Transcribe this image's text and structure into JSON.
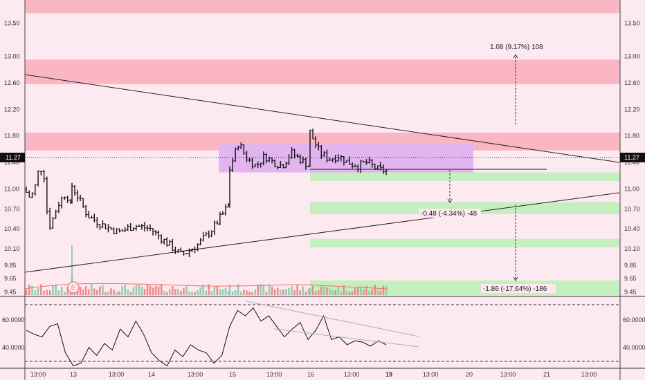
{
  "colors": {
    "background": "#fde9f0",
    "resistance_zone": "#fbb6c3",
    "support_zone": "#c6efbf",
    "range_box": "#e2b4f0",
    "candle": "#111111",
    "volume_up": "#8fcfb0",
    "volume_down": "#f08a8a",
    "oscillator_line": "#111111",
    "channel_line": "#9bb0d8",
    "price_badge": "#111111"
  },
  "price_axis": {
    "min": 9.38,
    "max": 13.85,
    "labels": [
      "13.50",
      "13.00",
      "12.60",
      "12.20",
      "11.80",
      "11.40",
      "11.00",
      "10.70",
      "10.40",
      "10.10",
      "9.85",
      "9.65",
      "9.45"
    ],
    "current_price": "11.27"
  },
  "oscillator_axis": {
    "labels": [
      "60.0000",
      "40.0000"
    ]
  },
  "time_axis": {
    "labels": [
      "13:00",
      "13",
      "13:00",
      "14",
      "13:00",
      "15",
      "13:00",
      "16",
      "13:00",
      "19",
      "13:00",
      "20",
      "13:00",
      "21",
      "13:00"
    ],
    "bold_index": 9
  },
  "measurements": {
    "up": "1.08 (9.17%) 108",
    "mid": "-0.48 (-4.34%) -48",
    "down": "-1.86 (-17.64%) -186"
  },
  "earnings_marker": "E",
  "chart_data": {
    "type": "candlestick",
    "title": "",
    "xlabel": "",
    "ylabel": "",
    "ylim": [
      9.38,
      13.85
    ],
    "current_price": 11.27,
    "zones": {
      "resistance": [
        [
          13.65,
          13.85
        ],
        [
          12.58,
          12.95
        ],
        [
          11.58,
          11.85
        ]
      ],
      "support": [
        [
          11.12,
          11.25
        ],
        [
          10.62,
          10.8
        ],
        [
          10.12,
          10.25
        ],
        [
          9.4,
          9.62
        ]
      ],
      "range_box": [
        11.25,
        11.68
      ]
    },
    "trend_lines": [
      {
        "from": [
          0,
          12.55
        ],
        "to": 1,
        "end_price": 11.18
      },
      {
        "from": [
          0,
          9.7
        ],
        "to": 1,
        "end_price": 10.77
      }
    ],
    "target_levels": [
      12.93,
      10.61,
      9.51
    ],
    "session_closes": {
      "day_13": [
        10.95,
        10.85,
        11.05,
        11.35,
        11.2,
        10.4,
        10.55,
        10.75,
        10.85,
        10.95,
        10.75
      ],
      "day_14": [
        11.05,
        10.6,
        10.45,
        10.35,
        10.45,
        10.4,
        10.2,
        10.0,
        10.15,
        10.4,
        10.75
      ],
      "day_15": [
        11.3,
        11.7,
        11.45,
        11.35,
        11.5,
        11.4,
        11.35,
        11.55,
        11.45,
        11.35
      ],
      "day_16": [
        11.85,
        11.55,
        11.45,
        11.5,
        11.4,
        11.35,
        11.4,
        11.3,
        11.27
      ]
    },
    "oscillator_values": [
      55,
      52,
      50,
      58,
      60,
      38,
      28,
      30,
      42,
      36,
      45,
      40,
      56,
      50,
      62,
      52,
      38,
      32,
      28,
      40,
      35,
      44,
      40,
      38,
      30,
      36,
      58,
      70,
      66,
      72,
      62,
      66,
      58,
      50,
      56,
      61,
      48,
      55,
      66,
      48,
      50,
      44,
      47,
      46,
      43,
      47,
      44
    ]
  }
}
